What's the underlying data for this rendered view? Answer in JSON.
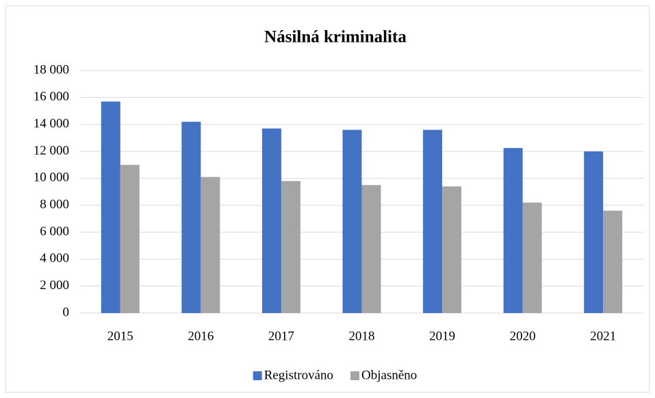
{
  "chart_data": {
    "type": "bar",
    "title": "Násilná kriminalita",
    "categories": [
      "2015",
      "2016",
      "2017",
      "2018",
      "2019",
      "2020",
      "2021"
    ],
    "series": [
      {
        "name": "Registrováno",
        "color": "#4472c4",
        "values": [
          15700,
          14200,
          13700,
          13600,
          13600,
          12250,
          12000
        ]
      },
      {
        "name": "Objasněno",
        "color": "#a5a5a5",
        "values": [
          11000,
          10100,
          9800,
          9500,
          9400,
          8200,
          7600
        ]
      }
    ],
    "ylim": [
      0,
      18000
    ],
    "yticks": [
      0,
      {
        "value": 2000,
        "label": "2 000"
      },
      {
        "value": 4000,
        "label": "4 000"
      },
      {
        "value": 6000,
        "label": "6 000"
      },
      {
        "value": 8000,
        "label": "8 000"
      },
      {
        "value": 10000,
        "label": "10 000"
      },
      {
        "value": 12000,
        "label": "12 000"
      },
      {
        "value": 14000,
        "label": "14 000"
      },
      {
        "value": 16000,
        "label": "16 000"
      },
      {
        "value": 18000,
        "label": "18 000"
      }
    ],
    "grid": true,
    "legend": "bottom"
  }
}
